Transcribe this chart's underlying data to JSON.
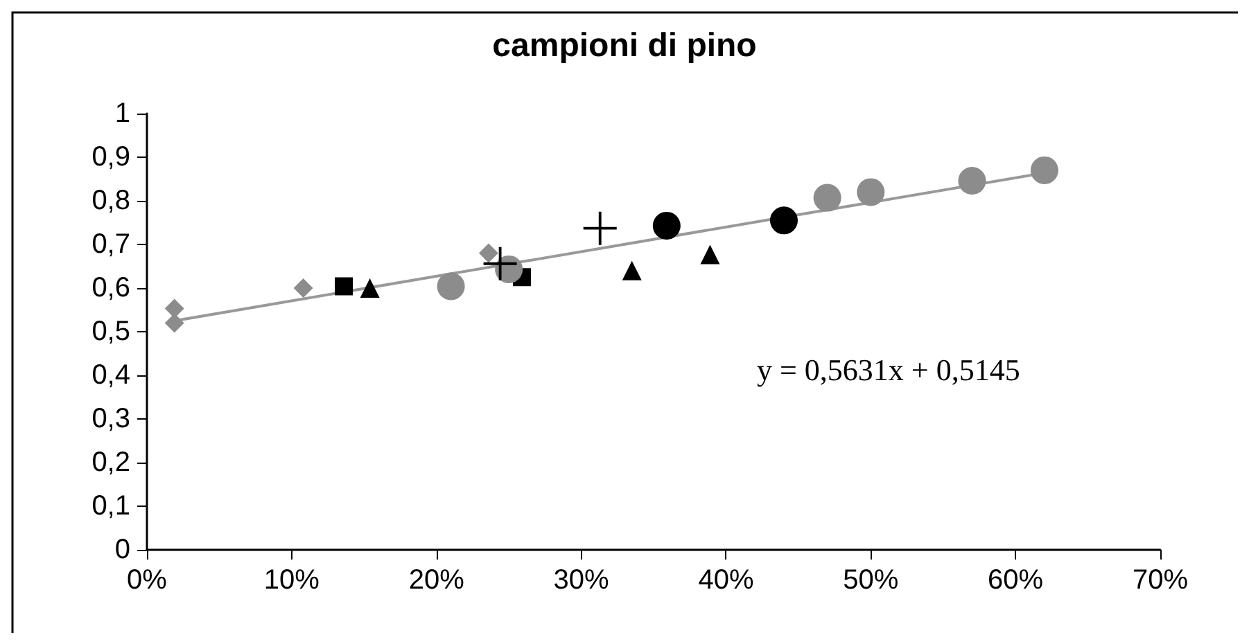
{
  "chart_data": {
    "type": "scatter",
    "title": "campioni di pino",
    "xlim": [
      0,
      0.7
    ],
    "xticks": [
      {
        "value": 0,
        "label": "0%"
      },
      {
        "value": 0.1,
        "label": "10%"
      },
      {
        "value": 0.2,
        "label": "20%"
      },
      {
        "value": 0.3,
        "label": "30%"
      },
      {
        "value": 0.4,
        "label": "40%"
      },
      {
        "value": 0.5,
        "label": "50%"
      },
      {
        "value": 0.6,
        "label": "60%"
      },
      {
        "value": 0.7,
        "label": "70%"
      }
    ],
    "ylim": [
      0,
      1
    ],
    "yticks": [
      0,
      {
        "value": 0.1,
        "label": "0,1"
      },
      {
        "value": 0.2,
        "label": "0,2"
      },
      {
        "value": 0.3,
        "label": "0,3"
      },
      {
        "value": 0.4,
        "label": "0,4"
      },
      {
        "value": 0.5,
        "label": "0,5"
      },
      {
        "value": 0.6,
        "label": "0,6"
      },
      {
        "value": 0.7,
        "label": "0,7"
      },
      {
        "value": 0.8,
        "label": "0,8"
      },
      {
        "value": 0.9,
        "label": "0,9"
      },
      1
    ],
    "grid": false,
    "annotations": [
      "y = 0,5631x + 0,5145"
    ],
    "series": [
      {
        "color": "#8c8c8c",
        "marker": "diamond",
        "x": [
          0.019,
          0.019,
          0.108,
          0.236
        ],
        "values": [
          0.52,
          0.553,
          0.6,
          0.68
        ]
      },
      {
        "color": "#000000",
        "marker": "square",
        "x": [
          0.136,
          0.259
        ],
        "values": [
          0.604,
          0.625
        ]
      },
      {
        "color": "#000000",
        "marker": "triangle",
        "x": [
          0.154,
          0.335,
          0.389
        ],
        "values": [
          0.6,
          0.64,
          0.677
        ]
      },
      {
        "color": "#000000",
        "marker": "circle",
        "x": [
          0.359,
          0.44
        ],
        "values": [
          0.743,
          0.755
        ]
      },
      {
        "color": "#8c8c8c",
        "marker": "circle",
        "x": [
          0.21,
          0.25,
          0.47,
          0.5,
          0.57,
          0.62
        ],
        "values": [
          0.604,
          0.643,
          0.807,
          0.82,
          0.846,
          0.87
        ]
      },
      {
        "color": "#000000",
        "marker": "cross",
        "x": [
          0.244,
          0.313
        ],
        "values": [
          0.656,
          0.737
        ]
      },
      {
        "type": "line",
        "color": "#999999",
        "marker": "none",
        "x": [
          0.019,
          0.62
        ],
        "values": [
          0.525,
          0.864
        ]
      }
    ]
  }
}
